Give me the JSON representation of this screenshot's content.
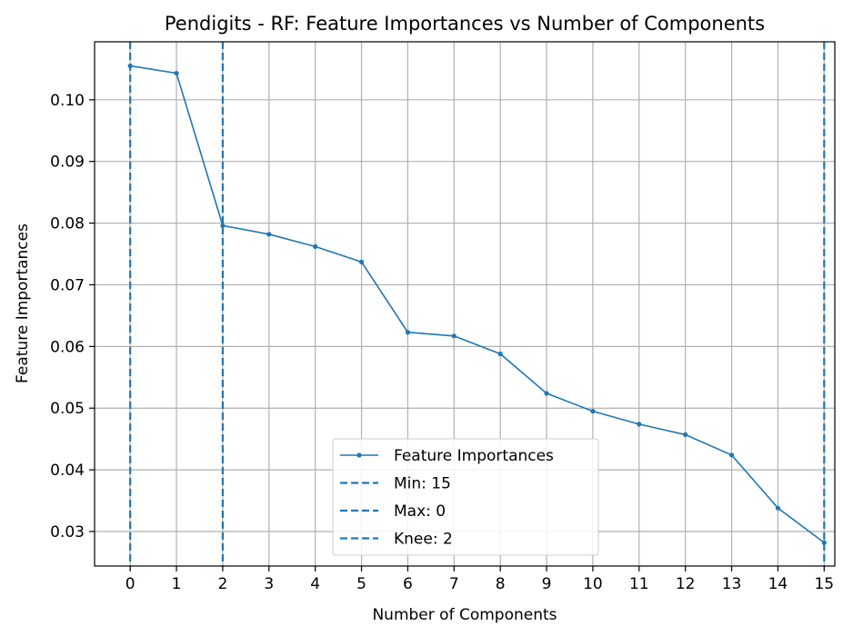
{
  "chart_data": {
    "type": "line",
    "title": "Pendigits - RF: Feature Importances vs Number of Components",
    "xlabel": "Number of Components",
    "ylabel": "Feature Importances",
    "xlim": [
      -0.77,
      15.23
    ],
    "ylim": [
      0.0244,
      0.1094
    ],
    "xticks": [
      "0",
      "1",
      "2",
      "3",
      "4",
      "5",
      "6",
      "7",
      "8",
      "9",
      "10",
      "11",
      "12",
      "13",
      "14",
      "15"
    ],
    "yticks": [
      "0.03",
      "0.04",
      "0.05",
      "0.06",
      "0.07",
      "0.08",
      "0.09",
      "0.10"
    ],
    "ytick_values": [
      0.03,
      0.04,
      0.05,
      0.06,
      0.07,
      0.08,
      0.09,
      0.1
    ],
    "grid": true,
    "legend_position": "lower-center",
    "color": "#1f77b4",
    "series": [
      {
        "name": "Feature Importances",
        "x": [
          0,
          1,
          2,
          3,
          4,
          5,
          6,
          7,
          8,
          9,
          10,
          11,
          12,
          13,
          14,
          15
        ],
        "y": [
          0.1055,
          0.1043,
          0.0796,
          0.0782,
          0.0762,
          0.0737,
          0.0623,
          0.0617,
          0.0588,
          0.0524,
          0.0495,
          0.0474,
          0.0457,
          0.0424,
          0.0338,
          0.0282
        ]
      }
    ],
    "vlines": [
      {
        "name": "Min: 15",
        "x": 15
      },
      {
        "name": "Max: 0",
        "x": 0
      },
      {
        "name": "Knee: 2",
        "x": 2
      }
    ]
  }
}
